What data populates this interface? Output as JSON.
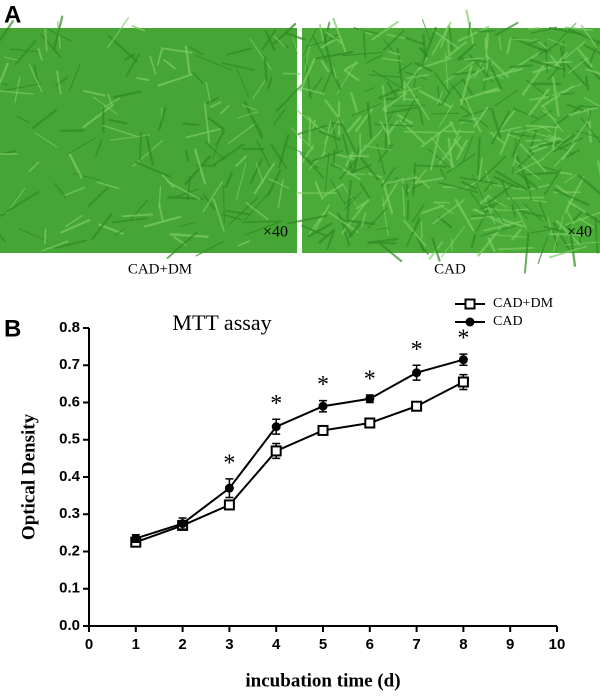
{
  "panel_a": {
    "label": "A",
    "images": [
      {
        "caption": "CAD+DM",
        "magnification": "×40"
      },
      {
        "caption": "CAD",
        "magnification": "×40"
      }
    ]
  },
  "chart_data": {
    "type": "line",
    "panel_label": "B",
    "title": "MTT assay",
    "x_label": "incubation time (d)",
    "y_label": "Optical Density",
    "x": [
      1,
      2,
      3,
      4,
      5,
      6,
      7,
      8
    ],
    "series": [
      {
        "name": "CAD+DM",
        "color": "#000000",
        "marker": "square-open",
        "values": [
          0.225,
          0.27,
          0.325,
          0.47,
          0.525,
          0.545,
          0.59,
          0.655
        ],
        "errors": [
          0.01,
          0.01,
          0.01,
          0.02,
          0.01,
          0.01,
          0.01,
          0.02
        ]
      },
      {
        "name": "CAD",
        "color": "#000000",
        "marker": "circle",
        "values": [
          0.235,
          0.275,
          0.37,
          0.535,
          0.59,
          0.61,
          0.68,
          0.715
        ],
        "errors": [
          0.01,
          0.015,
          0.025,
          0.02,
          0.015,
          0.01,
          0.02,
          0.015
        ]
      }
    ],
    "significance_marks": [
      {
        "x": 3,
        "label": "*"
      },
      {
        "x": 4,
        "label": "*"
      },
      {
        "x": 5,
        "label": "*"
      },
      {
        "x": 6,
        "label": "*"
      },
      {
        "x": 7,
        "label": "*"
      },
      {
        "x": 8,
        "label": "*"
      }
    ],
    "xlim": [
      0,
      10
    ],
    "xticks": [
      0,
      1,
      2,
      3,
      4,
      5,
      6,
      7,
      8,
      9,
      10
    ],
    "ylim": [
      0,
      0.8
    ],
    "yticks": [
      {
        "value": 0,
        "label": "0.0"
      },
      0.1,
      0.2,
      0.3,
      0.4,
      0.5,
      0.6,
      0.7,
      0.8
    ],
    "legend": "top-right",
    "grid": false
  }
}
